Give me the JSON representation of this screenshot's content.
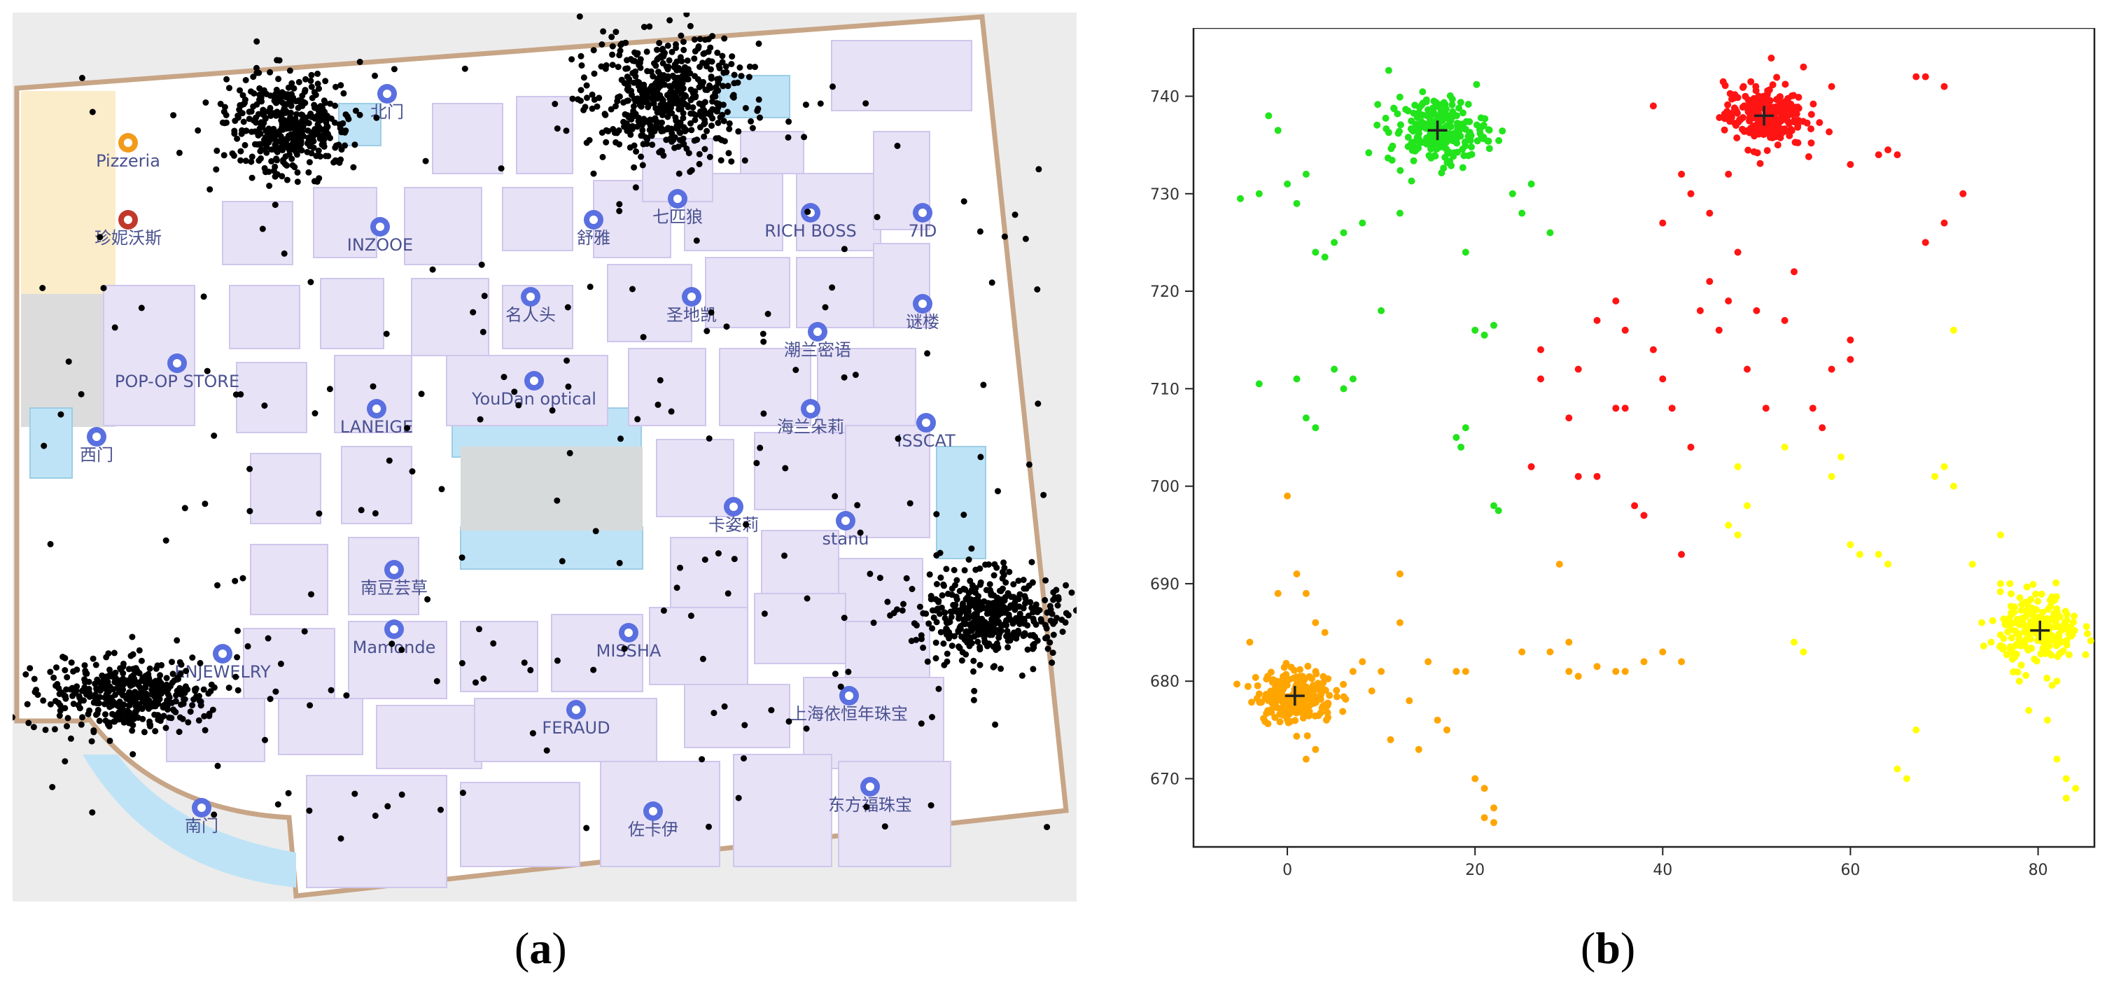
{
  "captions": {
    "a_pre": "(",
    "a_letter": "a",
    "a_post": ")",
    "b_pre": "(",
    "b_letter": "b",
    "b_post": ")"
  },
  "map": {
    "store_labels": [
      "Pizzeria",
      "珍妮沃斯",
      "北门",
      "西门",
      "南门",
      "POP-OP STORE",
      "LANEIGE",
      "INZOOE",
      "舒雅",
      "七匹狼",
      "RICH BOSS",
      "7ID",
      "名人头",
      "圣地凯",
      "潮兰密语",
      "谜楼",
      "YouDan optical",
      "海兰朵莉",
      "ISSCAT",
      "卡姿莉",
      "stanu",
      "南豆芸草",
      "Mamonde",
      "MISSHA",
      "ENJEWELRY",
      "上海依恒年珠宝",
      "FERAUD",
      "佐卡伊",
      "东方福珠宝"
    ]
  },
  "chart_data": {
    "type": "scatter",
    "title": "",
    "xlabel": "",
    "ylabel": "",
    "xlim": [
      -10,
      86
    ],
    "ylim": [
      663,
      747
    ],
    "xticks": [
      0,
      20,
      40,
      60,
      80
    ],
    "yticks": [
      670,
      680,
      690,
      700,
      710,
      720,
      730,
      740
    ],
    "series": [
      {
        "name": "green cluster",
        "color": "#22e41c",
        "center": [
          16,
          736.5
        ],
        "n_dense": 220,
        "spread": [
          3.5,
          2.3
        ],
        "points": [
          [
            -5,
            729.5
          ],
          [
            -3,
            730
          ],
          [
            -2,
            738
          ],
          [
            -1,
            736.5
          ],
          [
            0,
            731
          ],
          [
            1,
            729
          ],
          [
            2,
            732
          ],
          [
            3,
            724
          ],
          [
            4,
            723.5
          ],
          [
            5,
            725
          ],
          [
            6,
            726
          ],
          [
            8,
            727
          ],
          [
            10,
            718
          ],
          [
            12,
            728
          ],
          [
            -3,
            710.5
          ],
          [
            1,
            711
          ],
          [
            2,
            707
          ],
          [
            3,
            706
          ],
          [
            5,
            712
          ],
          [
            6,
            710
          ],
          [
            7,
            711
          ],
          [
            20,
            716
          ],
          [
            21,
            715.5
          ],
          [
            22,
            716.5
          ],
          [
            18,
            705
          ],
          [
            19,
            706
          ],
          [
            18.5,
            704
          ],
          [
            22,
            698
          ],
          [
            22.5,
            697.5
          ],
          [
            24,
            730
          ],
          [
            25,
            728
          ],
          [
            26,
            731
          ],
          [
            28,
            726
          ],
          [
            19,
            724
          ]
        ]
      },
      {
        "name": "red cluster",
        "color": "#ff1414",
        "center": [
          50.8,
          738
        ],
        "n_dense": 240,
        "spread": [
          2.8,
          2.2
        ],
        "points": [
          [
            39,
            739
          ],
          [
            40,
            727
          ],
          [
            42,
            732
          ],
          [
            43,
            730
          ],
          [
            45,
            728
          ],
          [
            47,
            732
          ],
          [
            55,
            743
          ],
          [
            58,
            741
          ],
          [
            60,
            733
          ],
          [
            63,
            734
          ],
          [
            64,
            734.5
          ],
          [
            65,
            734
          ],
          [
            67,
            742
          ],
          [
            68,
            742
          ],
          [
            70,
            741
          ],
          [
            68,
            725
          ],
          [
            70,
            727
          ],
          [
            72,
            730
          ],
          [
            26,
            702
          ],
          [
            27,
            714
          ],
          [
            27,
            711
          ],
          [
            31,
            701
          ],
          [
            31,
            712
          ],
          [
            33,
            717
          ],
          [
            33,
            701
          ],
          [
            35,
            719
          ],
          [
            36,
            708
          ],
          [
            37,
            698
          ],
          [
            38,
            697
          ],
          [
            39,
            714
          ],
          [
            40,
            711
          ],
          [
            41,
            708
          ],
          [
            43,
            704
          ],
          [
            44,
            718
          ],
          [
            45,
            721
          ],
          [
            46,
            716
          ],
          [
            47,
            719
          ],
          [
            48,
            724
          ],
          [
            49,
            712
          ],
          [
            50,
            718
          ],
          [
            51,
            708
          ],
          [
            53,
            717
          ],
          [
            54,
            722
          ],
          [
            56,
            708
          ],
          [
            57,
            706
          ],
          [
            58,
            712
          ],
          [
            60,
            715
          ],
          [
            60,
            713
          ],
          [
            36,
            716
          ],
          [
            30,
            707
          ],
          [
            35,
            708
          ],
          [
            42,
            693
          ]
        ]
      },
      {
        "name": "orange cluster",
        "color": "#ffa500",
        "center": [
          0.8,
          678.5
        ],
        "n_dense": 230,
        "spread": [
          2.8,
          1.8
        ],
        "points": [
          [
            -4,
            684
          ],
          [
            -1,
            689
          ],
          [
            0,
            699
          ],
          [
            1,
            691
          ],
          [
            2,
            689
          ],
          [
            3,
            686
          ],
          [
            4,
            685
          ],
          [
            7,
            681
          ],
          [
            8,
            682
          ],
          [
            9,
            679
          ],
          [
            10,
            681
          ],
          [
            12,
            686
          ],
          [
            12,
            691
          ],
          [
            13,
            678
          ],
          [
            15,
            682
          ],
          [
            16,
            676
          ],
          [
            17,
            675
          ],
          [
            18,
            681
          ],
          [
            19,
            681
          ],
          [
            20,
            670
          ],
          [
            21,
            669
          ],
          [
            22,
            667
          ],
          [
            21,
            666
          ],
          [
            22,
            665.5
          ],
          [
            28,
            683
          ],
          [
            29,
            692
          ],
          [
            30,
            681
          ],
          [
            30,
            684
          ],
          [
            33,
            681.5
          ],
          [
            35,
            681
          ],
          [
            36,
            681
          ],
          [
            38,
            682
          ],
          [
            40,
            683
          ],
          [
            42,
            682
          ],
          [
            31,
            680.5
          ],
          [
            25,
            683
          ],
          [
            2,
            672
          ],
          [
            3,
            673
          ],
          [
            11,
            674
          ],
          [
            14,
            673
          ]
        ]
      },
      {
        "name": "yellow cluster",
        "color": "#ffff00",
        "center": [
          80.2,
          685.2
        ],
        "n_dense": 230,
        "spread": [
          2.8,
          2.4
        ],
        "points": [
          [
            48,
            702
          ],
          [
            49,
            698
          ],
          [
            53,
            704
          ],
          [
            58,
            701
          ],
          [
            59,
            703
          ],
          [
            60,
            694
          ],
          [
            61,
            693
          ],
          [
            63,
            693
          ],
          [
            64,
            692
          ],
          [
            65,
            671
          ],
          [
            66,
            670
          ],
          [
            67,
            675
          ],
          [
            69,
            701
          ],
          [
            70,
            702
          ],
          [
            71,
            700
          ],
          [
            71,
            716
          ],
          [
            73,
            692
          ],
          [
            74,
            686
          ],
          [
            75,
            684
          ],
          [
            76,
            690
          ],
          [
            76,
            695
          ],
          [
            77,
            690
          ],
          [
            78,
            680
          ],
          [
            79,
            677
          ],
          [
            81,
            676
          ],
          [
            82,
            680
          ],
          [
            83,
            684
          ],
          [
            82,
            672
          ],
          [
            83,
            670
          ],
          [
            84,
            669
          ],
          [
            83,
            668
          ],
          [
            54,
            684
          ],
          [
            55,
            683
          ],
          [
            47,
            696
          ],
          [
            48,
            695
          ]
        ]
      }
    ],
    "centroids": [
      [
        16,
        736.5
      ],
      [
        50.8,
        738
      ],
      [
        0.8,
        678.5
      ],
      [
        80.2,
        685.2
      ]
    ]
  }
}
